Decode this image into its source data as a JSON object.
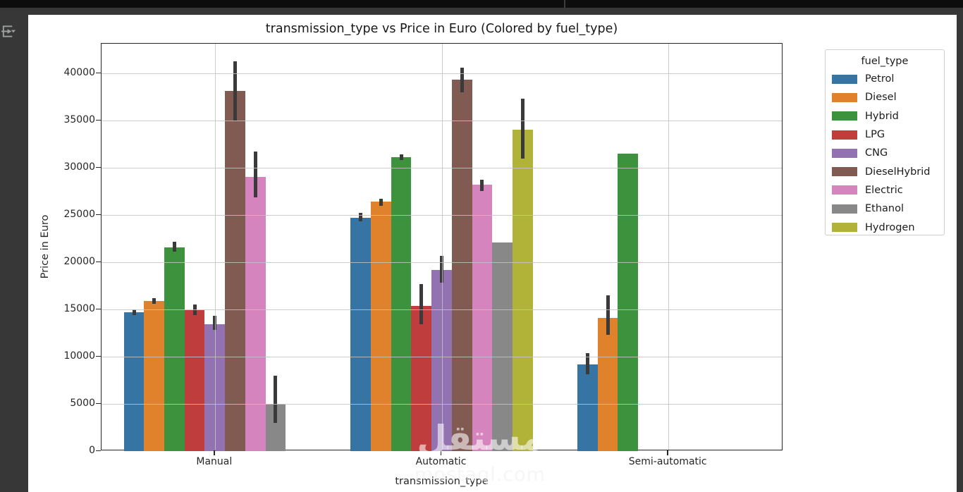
{
  "chart_data": {
    "type": "bar",
    "title": "transmission_type vs Price in Euro (Colored by fuel_type)",
    "xlabel": "transmission_type",
    "ylabel": "Price in Euro",
    "categories": [
      "Manual",
      "Automatic",
      "Semi-automatic"
    ],
    "y_ticks": [
      0,
      5000,
      10000,
      15000,
      20000,
      25000,
      30000,
      35000,
      40000
    ],
    "ylim": [
      0,
      43150
    ],
    "grid": true,
    "error_bars": true,
    "error_bar_color": "#3a3a3a",
    "legend": {
      "title": "fuel_type",
      "position": "right-outside"
    },
    "series": [
      {
        "name": "Petrol",
        "color": "#3674a3",
        "values": [
          14700,
          24700,
          9200
        ],
        "err_low": [
          14400,
          24300,
          8100
        ],
        "err_high": [
          15000,
          25200,
          10400
        ]
      },
      {
        "name": "Diesel",
        "color": "#e0812c",
        "values": [
          15900,
          26400,
          14100
        ],
        "err_low": [
          15600,
          26000,
          12300
        ],
        "err_high": [
          16200,
          26700,
          16500
        ]
      },
      {
        "name": "Hybrid",
        "color": "#3d923d",
        "values": [
          21600,
          31100,
          31500
        ],
        "err_low": [
          21100,
          30800,
          31500
        ],
        "err_high": [
          22200,
          31400,
          31500
        ]
      },
      {
        "name": "LPG",
        "color": "#c03d3e",
        "values": [
          14900,
          15400,
          null
        ],
        "err_low": [
          14400,
          13400,
          null
        ],
        "err_high": [
          15500,
          17700,
          null
        ]
      },
      {
        "name": "CNG",
        "color": "#9372b2",
        "values": [
          13400,
          19200,
          null
        ],
        "err_low": [
          12800,
          17800,
          null
        ],
        "err_high": [
          14300,
          20700,
          null
        ]
      },
      {
        "name": "DieselHybrid",
        "color": "#815a52",
        "values": [
          38100,
          39300,
          null
        ],
        "err_low": [
          35000,
          38000,
          null
        ],
        "err_high": [
          41300,
          40600,
          null
        ]
      },
      {
        "name": "Electric",
        "color": "#d684bd",
        "values": [
          29000,
          28200,
          null
        ],
        "err_low": [
          26900,
          27500,
          null
        ],
        "err_high": [
          31700,
          28700,
          null
        ]
      },
      {
        "name": "Ethanol",
        "color": "#888888",
        "values": [
          5000,
          22100,
          null
        ],
        "err_low": [
          3000,
          22100,
          null
        ],
        "err_high": [
          8000,
          22100,
          null
        ]
      },
      {
        "name": "Hydrogen",
        "color": "#b1b238",
        "values": [
          null,
          34000,
          null
        ],
        "err_low": [
          null,
          31000,
          null
        ],
        "err_high": [
          null,
          37300,
          null
        ]
      }
    ],
    "watermark": {
      "line1": "مستقل",
      "line2": "mostaql.com"
    }
  }
}
